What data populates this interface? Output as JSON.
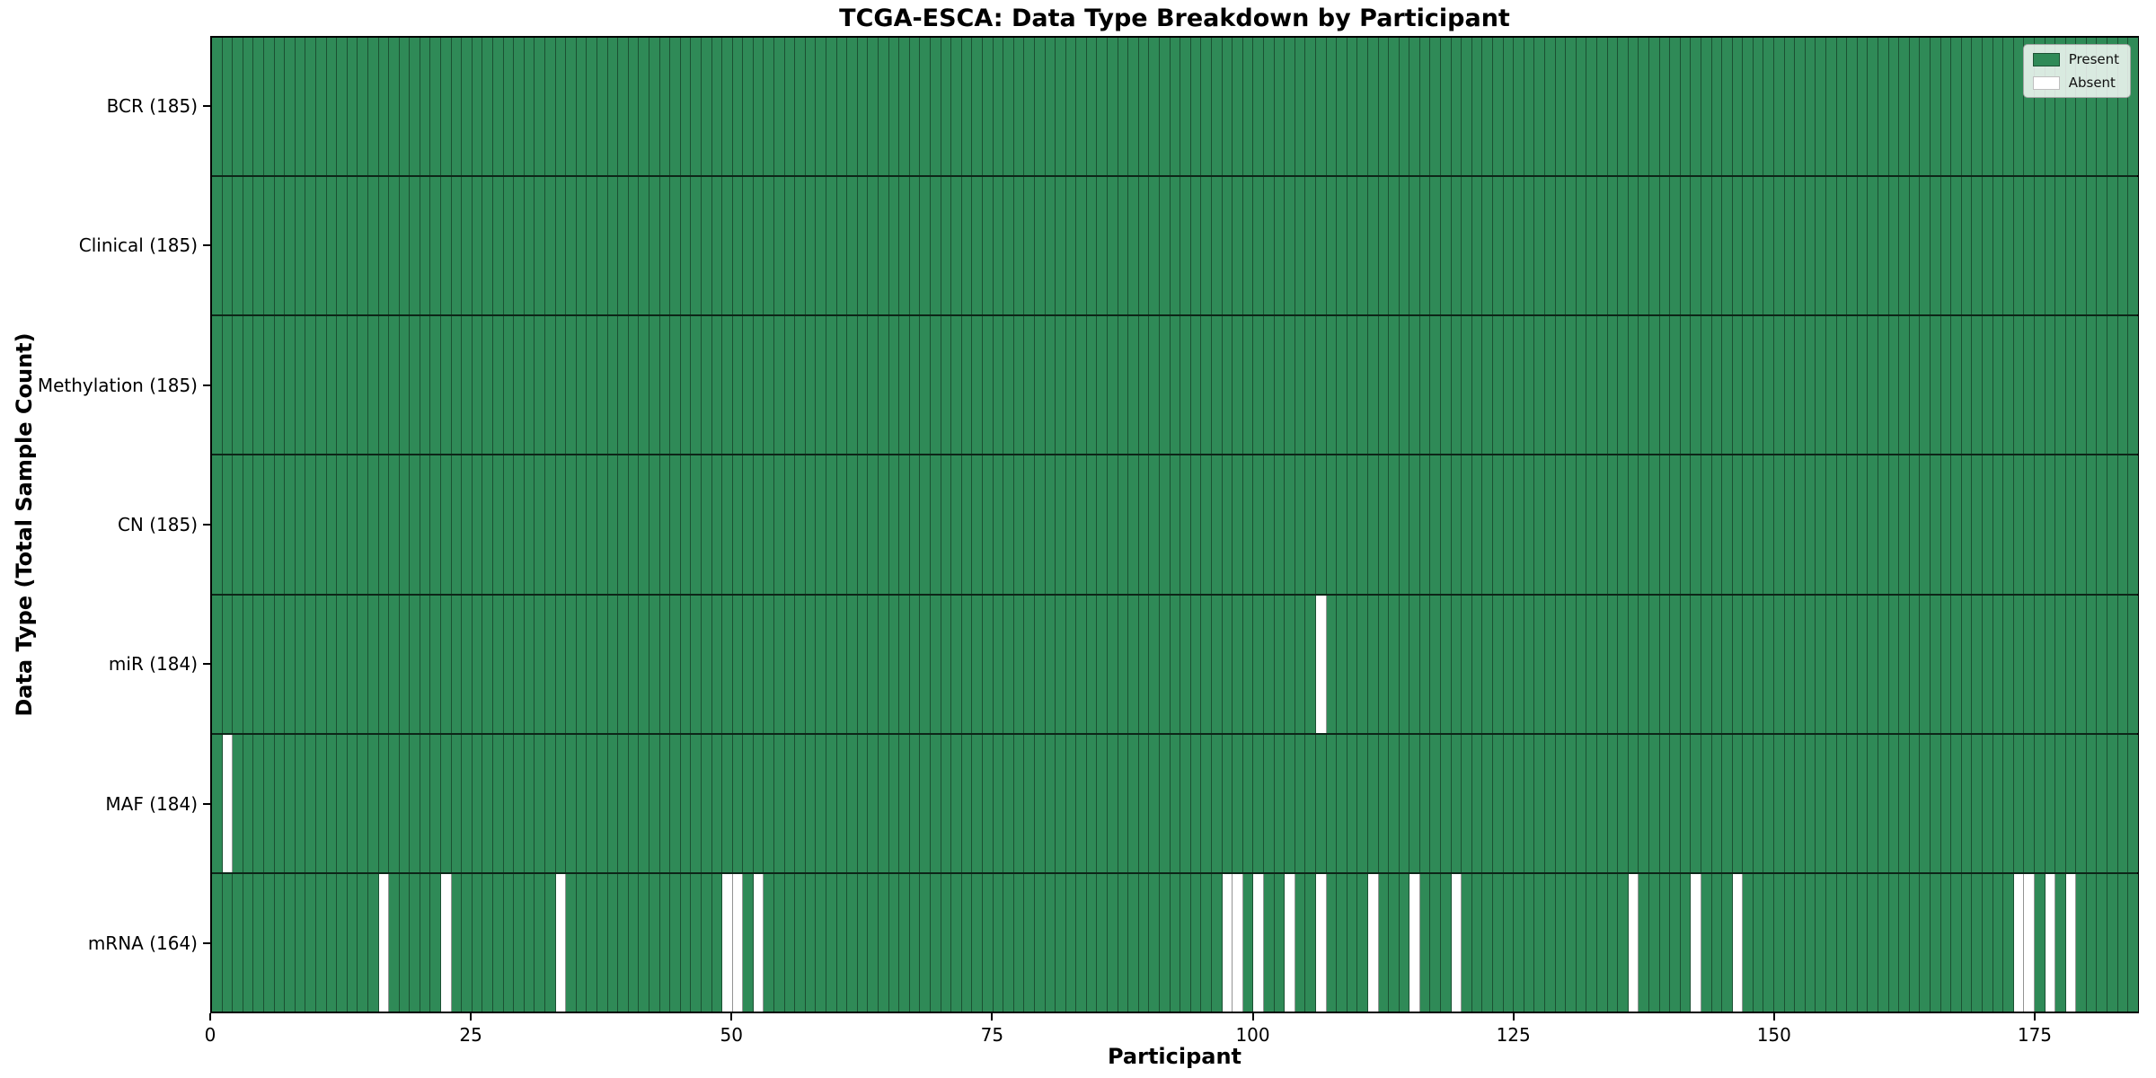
{
  "figure": {
    "title": "TCGA-ESCA: Data Type Breakdown by Participant"
  },
  "chart_data": {
    "type": "heatmap",
    "title": "TCGA-ESCA: Data Type Breakdown by Participant",
    "xlabel": "Participant",
    "ylabel": "Data Type (Total Sample Count)",
    "n_participants": 185,
    "x_range": [
      0,
      185
    ],
    "x_ticks": [
      0,
      25,
      50,
      75,
      100,
      125,
      150,
      175
    ],
    "grid": "cell-borders",
    "colors": {
      "present": "#2f8a57",
      "absent": "#ffffff",
      "cell_border": "rgba(0,0,0,0.42)",
      "row_border": "rgba(0,0,0,0.72)"
    },
    "legend": {
      "position": "upper-right",
      "entries": [
        {
          "label": "Present",
          "color": "#2f8a57"
        },
        {
          "label": "Absent",
          "color": "#ffffff"
        }
      ]
    },
    "rows": [
      {
        "label": "BCR (185)",
        "data_type": "BCR",
        "present_count": 185,
        "absent_participants": []
      },
      {
        "label": "Clinical (185)",
        "data_type": "Clinical",
        "present_count": 185,
        "absent_participants": []
      },
      {
        "label": "Methylation (185)",
        "data_type": "Methylation",
        "present_count": 185,
        "absent_participants": []
      },
      {
        "label": "CN (185)",
        "data_type": "CN",
        "present_count": 185,
        "absent_participants": []
      },
      {
        "label": "miR (184)",
        "data_type": "miR",
        "present_count": 184,
        "absent_participants": [
          106
        ]
      },
      {
        "label": "MAF (184)",
        "data_type": "MAF",
        "present_count": 184,
        "absent_participants": [
          1
        ]
      },
      {
        "label": "mRNA (164)",
        "data_type": "mRNA",
        "present_count": 164,
        "absent_participants": [
          16,
          22,
          33,
          49,
          50,
          52,
          97,
          98,
          100,
          103,
          106,
          111,
          115,
          119,
          136,
          142,
          146,
          173,
          174,
          176,
          178
        ]
      }
    ]
  }
}
